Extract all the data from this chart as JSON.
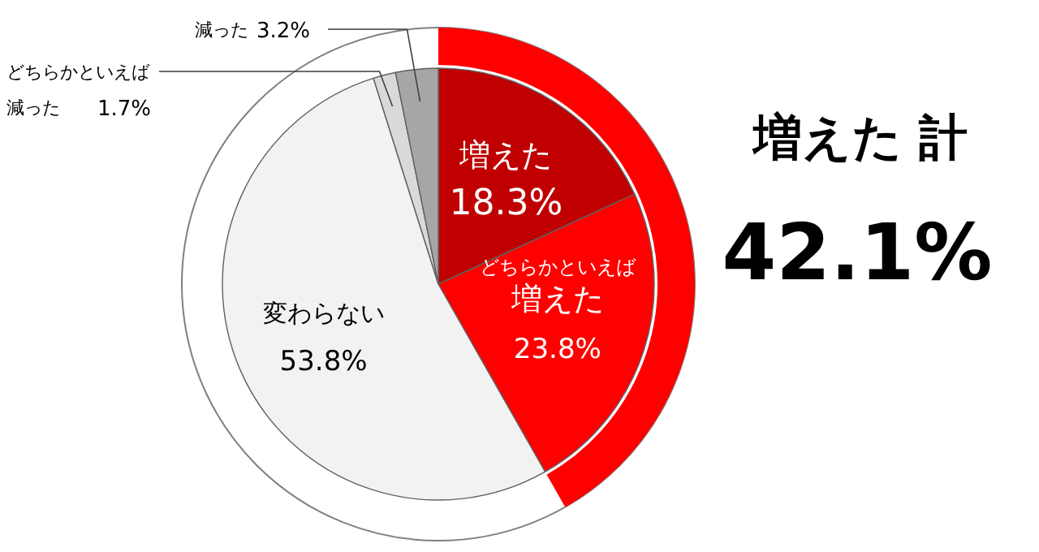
{
  "chart_data": {
    "type": "pie",
    "categories": [
      "増えた",
      "どちらかといえば増えた",
      "変わらない",
      "どちらかといえば減った",
      "減った"
    ],
    "values": [
      18.3,
      23.8,
      53.8,
      1.7,
      3.2
    ],
    "colors": [
      "#c00000",
      "#ff0000",
      "#f2f2f2",
      "#d9d9d9",
      "#a6a6a6"
    ],
    "value_labels": [
      "18.3%",
      "23.8%",
      "53.8%",
      "1.7%",
      "3.2%"
    ],
    "annotations": [
      "増えた 計",
      "42.1%"
    ],
    "legend": false
  }
}
